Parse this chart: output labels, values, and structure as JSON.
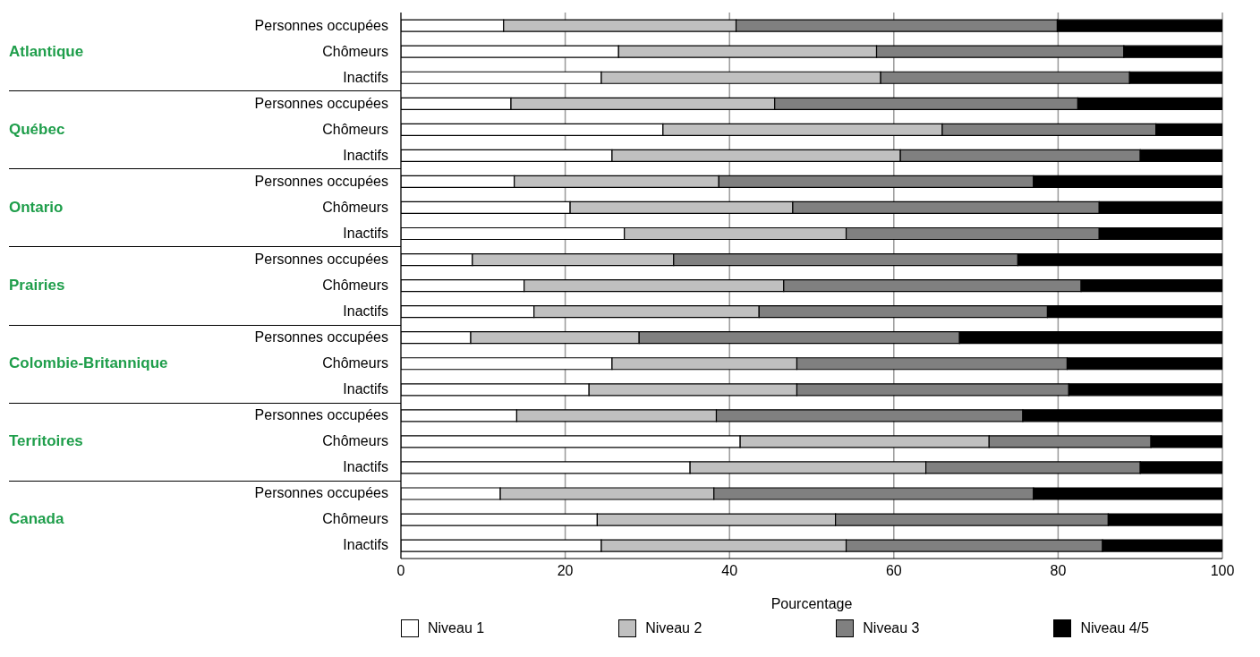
{
  "chart_data": {
    "type": "bar",
    "orientation": "horizontal",
    "stacked": true,
    "categories": [
      "Personnes occupées",
      "Chômeurs",
      "Inactifs",
      "Personnes occupées",
      "Chômeurs",
      "Inactifs",
      "Personnes occupées",
      "Chômeurs",
      "Inactifs",
      "Personnes occupées",
      "Chômeurs",
      "Inactifs",
      "Personnes occupées",
      "Chômeurs",
      "Inactifs",
      "Personnes occupées",
      "Chômeurs",
      "Inactifs",
      "Personnes occupées",
      "Chômeurs",
      "Inactifs"
    ],
    "annotations": [
      "Atlantique",
      "Québec",
      "Ontario",
      "Prairies",
      "Colombie-Britannique",
      "Territoires",
      "Canada"
    ],
    "series": [
      {
        "name": "Niveau 1",
        "color": "#ffffff",
        "values": [
          12.5,
          26.5,
          24.4,
          13.4,
          31.9,
          25.7,
          13.8,
          20.6,
          27.2,
          8.7,
          15.0,
          16.2,
          8.5,
          25.7,
          22.9,
          14.1,
          41.3,
          35.2,
          12.1,
          23.9,
          24.4
        ]
      },
      {
        "name": "Niveau 2",
        "color": "#c0c0c0",
        "values": [
          28.3,
          31.4,
          34.0,
          32.1,
          34.0,
          35.1,
          24.9,
          27.1,
          27.0,
          24.5,
          31.6,
          27.4,
          20.5,
          22.5,
          25.3,
          24.3,
          30.3,
          28.7,
          26.0,
          29.0,
          29.8
        ]
      },
      {
        "name": "Niveau 3",
        "color": "#808080",
        "values": [
          39.1,
          30.1,
          30.3,
          36.9,
          26.0,
          29.2,
          38.3,
          37.3,
          30.8,
          41.9,
          36.2,
          35.1,
          39.0,
          32.9,
          33.1,
          37.3,
          19.7,
          26.1,
          38.9,
          33.2,
          31.2
        ]
      },
      {
        "name": "Niveau 4/5",
        "color": "#000000",
        "values": [
          20.1,
          12.0,
          11.3,
          17.6,
          8.1,
          10.0,
          23.0,
          15.0,
          15.0,
          24.9,
          17.2,
          21.3,
          32.0,
          18.9,
          18.7,
          24.3,
          8.7,
          10.0,
          23.0,
          13.9,
          14.6
        ]
      }
    ],
    "xlabel": "Pourcentage",
    "xlim": [
      0,
      100
    ],
    "xticks": [
      0,
      20,
      40,
      60,
      80,
      100
    ],
    "grid": "x",
    "legend": "bottom"
  }
}
